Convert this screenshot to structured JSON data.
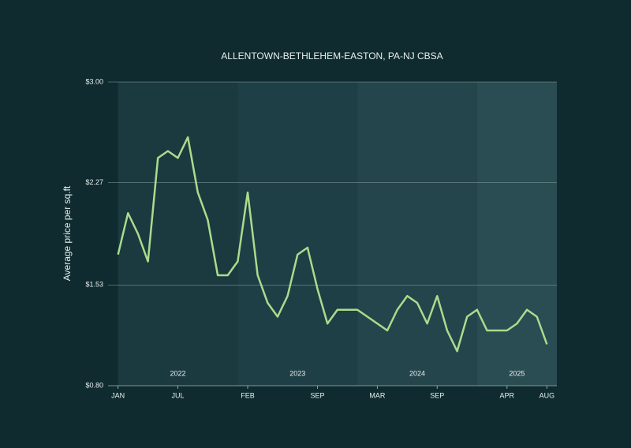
{
  "chart_data": {
    "type": "line",
    "title": "ALLENTOWN-BETHLEHEM-EASTON, PA-NJ CBSA",
    "y_label": "Average price per sq.ft",
    "x": [
      "2022-01",
      "2022-02",
      "2022-03",
      "2022-04",
      "2022-05",
      "2022-06",
      "2022-07",
      "2022-08",
      "2022-09",
      "2022-10",
      "2022-11",
      "2022-12",
      "2023-01",
      "2023-02",
      "2023-03",
      "2023-04",
      "2023-05",
      "2023-06",
      "2023-07",
      "2023-08",
      "2023-09",
      "2023-10",
      "2023-11",
      "2023-12",
      "2024-01",
      "2024-02",
      "2024-03",
      "2024-04",
      "2024-05",
      "2024-06",
      "2024-07",
      "2024-08",
      "2024-09",
      "2024-10",
      "2024-11",
      "2024-12",
      "2025-01",
      "2025-02",
      "2025-03",
      "2025-04",
      "2025-05",
      "2025-06",
      "2025-07",
      "2025-08"
    ],
    "values": [
      1.75,
      2.05,
      1.9,
      1.7,
      2.45,
      2.5,
      2.45,
      2.6,
      2.2,
      2.0,
      1.6,
      1.6,
      1.7,
      2.2,
      1.6,
      1.4,
      1.3,
      1.45,
      1.75,
      1.8,
      1.5,
      1.25,
      1.35,
      1.35,
      1.35,
      1.3,
      1.25,
      1.2,
      1.35,
      1.45,
      1.4,
      1.25,
      1.45,
      1.2,
      1.05,
      1.3,
      1.35,
      1.2,
      1.2,
      1.2,
      1.25,
      1.35,
      1.3,
      1.1
    ],
    "color": "#a9dc8c",
    "xlim": [
      "2021-12",
      "2025-09"
    ],
    "xticks": [
      {
        "value": "2022-01",
        "label": "JAN"
      },
      {
        "value": "2022-07",
        "label": "JUL"
      },
      {
        "value": "2023-02",
        "label": "FEB"
      },
      {
        "value": "2023-09",
        "label": "SEP"
      },
      {
        "value": "2024-03",
        "label": "MAR"
      },
      {
        "value": "2024-09",
        "label": "SEP"
      },
      {
        "value": "2025-04",
        "label": "APR"
      },
      {
        "value": "2025-08",
        "label": "AUG"
      }
    ],
    "year_labels": [
      "2022",
      "2023",
      "2024",
      "2025"
    ],
    "ylim": [
      0.8,
      3.0
    ],
    "yticks": [
      {
        "value": 0.8,
        "label": "$0.80"
      },
      {
        "value": 1.53,
        "label": "$1.53"
      },
      {
        "value": 2.27,
        "label": "$2.27"
      },
      {
        "value": 3.0,
        "label": "$3.00"
      }
    ],
    "grid": true
  }
}
